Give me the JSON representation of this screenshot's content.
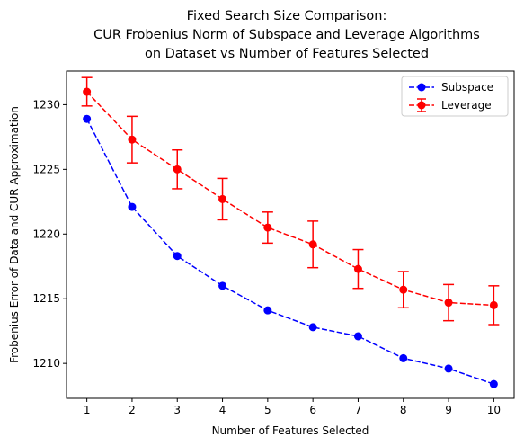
{
  "chart_data": {
    "type": "line",
    "title_lines": [
      "Fixed Search Size Comparison:",
      "CUR Frobenius Norm of Subspace and Leverage Algorithms",
      "on Dataset vs Number of Features Selected"
    ],
    "xlabel": "Number of Features Selected",
    "ylabel": "Frobenius Error of Data and CUR Approximation",
    "x": [
      1,
      2,
      3,
      4,
      5,
      6,
      7,
      8,
      9,
      10
    ],
    "xticks": [
      "1",
      "2",
      "3",
      "4",
      "5",
      "6",
      "7",
      "8",
      "9",
      "10"
    ],
    "yticks": [
      "1210",
      "1215",
      "1220",
      "1225",
      "1230"
    ],
    "ytick_values": [
      1210,
      1215,
      1220,
      1225,
      1230
    ],
    "xlim": [
      0.55,
      10.45
    ],
    "ylim": [
      1207.3,
      1232.6
    ],
    "grid": false,
    "legend_position": "top-right",
    "series": [
      {
        "name": "Subspace",
        "color": "#0000ff",
        "linestyle": "dashed",
        "marker": "circle",
        "values": [
          1228.9,
          1222.1,
          1218.3,
          1216.0,
          1214.1,
          1212.8,
          1212.1,
          1210.4,
          1209.6,
          1208.4
        ]
      },
      {
        "name": "Leverage",
        "color": "#ff0000",
        "linestyle": "dashed",
        "marker": "circle",
        "values": [
          1231.0,
          1227.3,
          1225.0,
          1222.7,
          1220.5,
          1219.2,
          1217.3,
          1215.7,
          1214.7,
          1214.5
        ],
        "error": [
          1.1,
          1.8,
          1.5,
          1.6,
          1.2,
          1.8,
          1.5,
          1.4,
          1.4,
          1.5
        ]
      }
    ]
  }
}
